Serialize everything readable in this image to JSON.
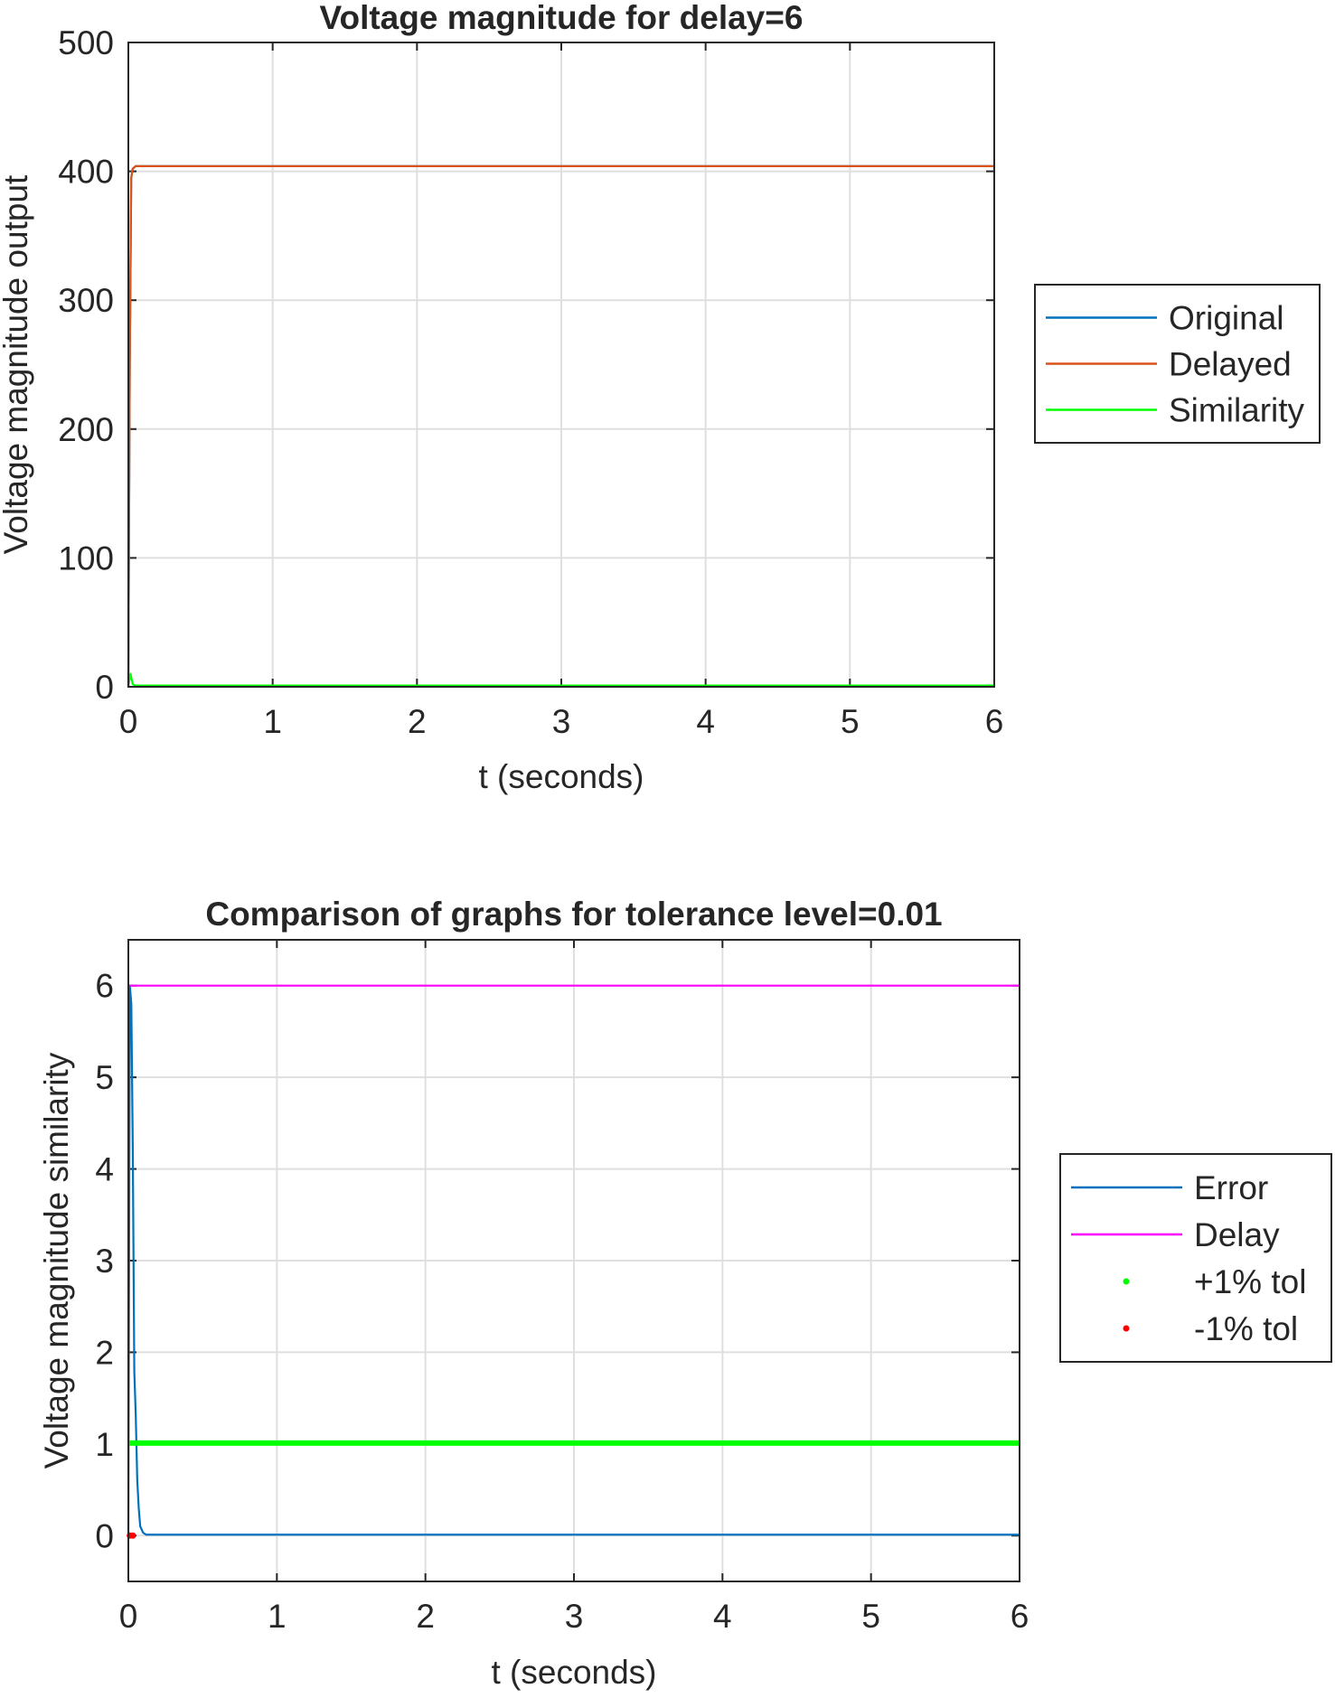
{
  "chart_data": [
    {
      "type": "line",
      "title": "Voltage magnitude for delay=6",
      "xlabel": "t (seconds)",
      "ylabel": "Voltage magnitude output",
      "xlim": [
        0,
        6
      ],
      "ylim": [
        0,
        500
      ],
      "xticks": [
        "0",
        "1",
        "2",
        "3",
        "4",
        "5",
        "6"
      ],
      "yticks": [
        "0",
        "100",
        "200",
        "300",
        "400",
        "500"
      ],
      "grid": true,
      "legend_position": "outside-right",
      "series": [
        {
          "name": "Original",
          "color": "#0072BD",
          "style": "line",
          "x": [
            0,
            0.01,
            0.02,
            0.03,
            0.05,
            0.08,
            6
          ],
          "y": [
            0,
            250,
            395,
            402,
            404,
            404,
            404
          ]
        },
        {
          "name": "Delayed",
          "color": "#D95319",
          "style": "line",
          "x": [
            0,
            0.01,
            0.02,
            0.03,
            0.05,
            0.08,
            6
          ],
          "y": [
            0,
            250,
            395,
            402,
            404,
            404,
            404
          ]
        },
        {
          "name": "Similarity",
          "color": "#00FF00",
          "style": "line",
          "x": [
            0,
            0.015,
            0.03,
            0.05,
            6
          ],
          "y": [
            0,
            10,
            2,
            1,
            1
          ]
        }
      ]
    },
    {
      "type": "line",
      "title": "Comparison of graphs for tolerance level=0.01",
      "xlabel": "t (seconds)",
      "ylabel": "Voltage magnitude similarity",
      "xlim": [
        0,
        6
      ],
      "ylim": [
        -0.5,
        6.5
      ],
      "xticks": [
        "0",
        "1",
        "2",
        "3",
        "4",
        "5",
        "6"
      ],
      "yticks": [
        "0",
        "1",
        "2",
        "3",
        "4",
        "5",
        "6"
      ],
      "grid": true,
      "legend_position": "outside-right",
      "series": [
        {
          "name": "Error",
          "color": "#0072BD",
          "style": "line",
          "x": [
            0,
            0.01,
            0.02,
            0.03,
            0.04,
            0.05,
            0.06,
            0.07,
            0.08,
            0.1,
            0.12,
            6
          ],
          "y": [
            0,
            6.0,
            5.8,
            4.2,
            1.8,
            1.3,
            0.6,
            0.3,
            0.1,
            0.03,
            0.01,
            0.01
          ]
        },
        {
          "name": "Delay",
          "color": "#FF00FF",
          "style": "line",
          "x": [
            0,
            6
          ],
          "y": [
            6,
            6
          ]
        },
        {
          "name": "+1% tol",
          "color": "#00FF00",
          "style": "dots",
          "x": [
            0,
            6
          ],
          "y": [
            1.01,
            1.01
          ]
        },
        {
          "name": "-1% tol",
          "color": "#FF0000",
          "style": "dots",
          "x": [
            0.01,
            0.03
          ],
          "y": [
            0.0,
            0.0
          ]
        }
      ]
    }
  ]
}
